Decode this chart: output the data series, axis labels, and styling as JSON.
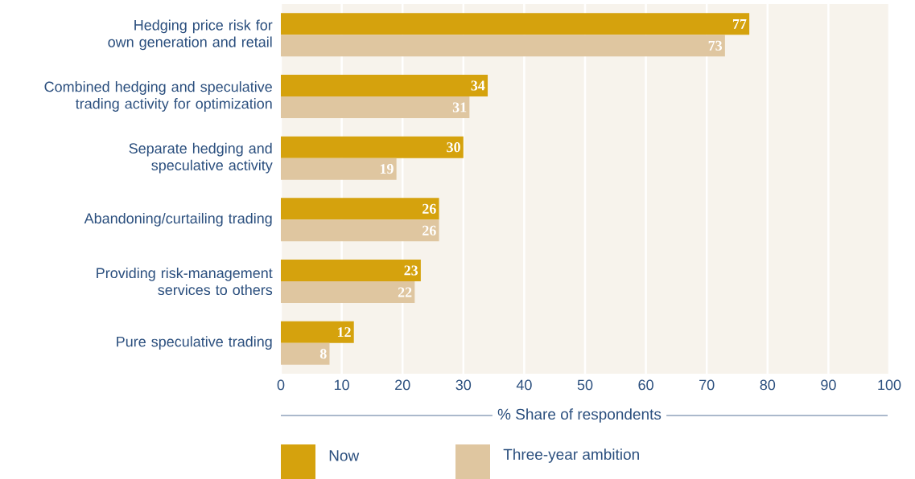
{
  "chart_data": {
    "type": "bar",
    "orientation": "horizontal",
    "categories": [
      "Hedging price risk for own generation and retail",
      "Combined hedging and speculative trading activity for optimization",
      "Separate hedging and speculative activity",
      "Abandoning/curtailing trading",
      "Providing risk-management services to others",
      "Pure speculative trading"
    ],
    "series": [
      {
        "name": "Now",
        "color": "#d5a20d",
        "values": [
          77,
          34,
          30,
          26,
          23,
          12
        ]
      },
      {
        "name": "Three-year ambition",
        "color": "#dfc6a0",
        "values": [
          73,
          31,
          19,
          26,
          22,
          8
        ]
      }
    ],
    "xlim": [
      0,
      100
    ],
    "xticks": [
      0,
      10,
      20,
      30,
      40,
      50,
      60,
      70,
      80,
      90,
      100
    ],
    "xlabel": "% Share of respondents",
    "data_labels": true,
    "grid": "x",
    "legend": "bottom"
  }
}
